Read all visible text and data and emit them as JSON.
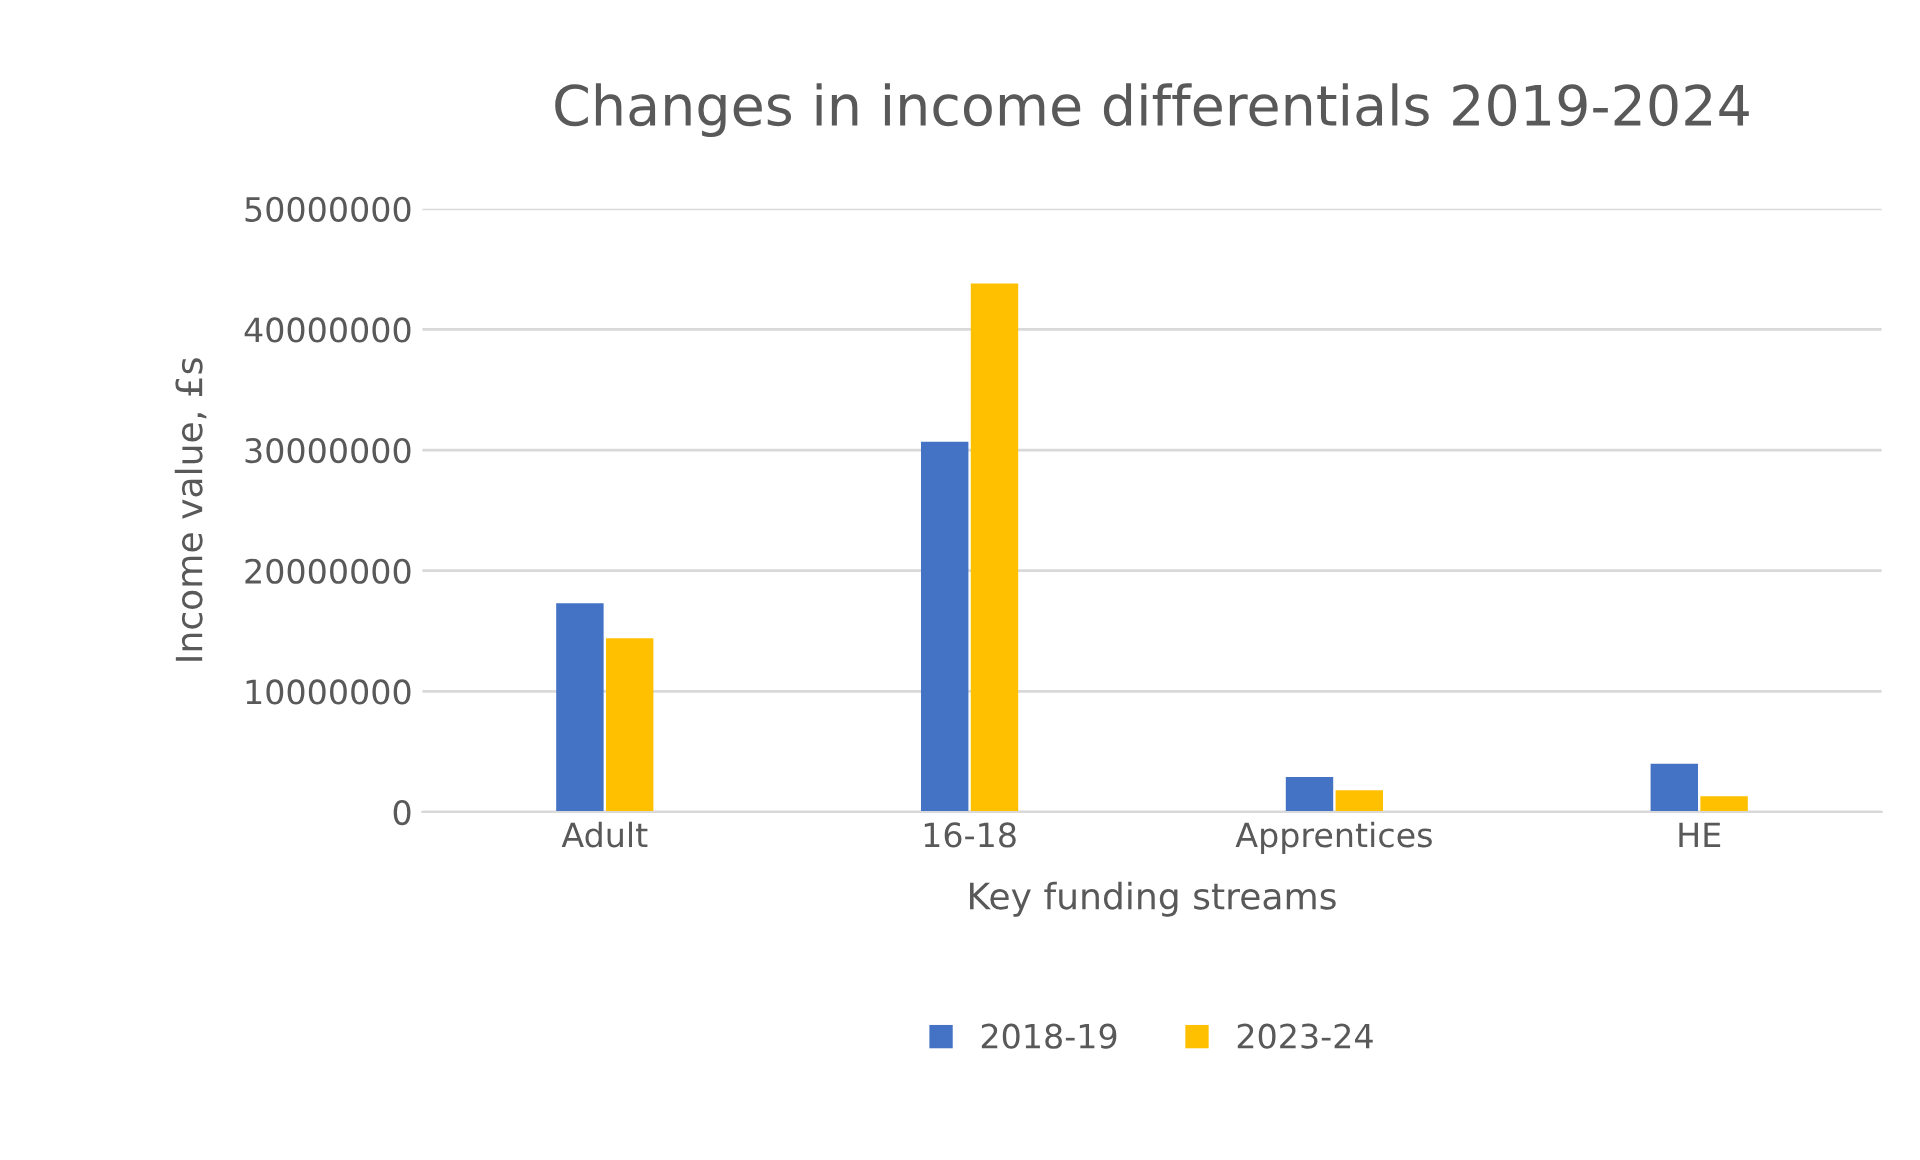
{
  "chart_data": {
    "type": "bar",
    "title": "Changes in income differentials 2019-2024",
    "xlabel": "Key funding streams",
    "ylabel": "Income value, £s",
    "categories": [
      "Adult",
      "16-18",
      "Apprentices",
      "HE"
    ],
    "series": [
      {
        "name": "2018-19",
        "color": "#4472c4",
        "values": [
          17300000,
          30700000,
          2900000,
          4000000
        ]
      },
      {
        "name": "2023-24",
        "color": "#ffc000",
        "values": [
          14400000,
          43800000,
          1800000,
          1300000
        ]
      }
    ],
    "ylim": [
      0,
      50000000
    ],
    "yticks": [
      0,
      10000000,
      20000000,
      30000000,
      40000000,
      50000000
    ],
    "grid": "y",
    "legend": "bottom"
  }
}
